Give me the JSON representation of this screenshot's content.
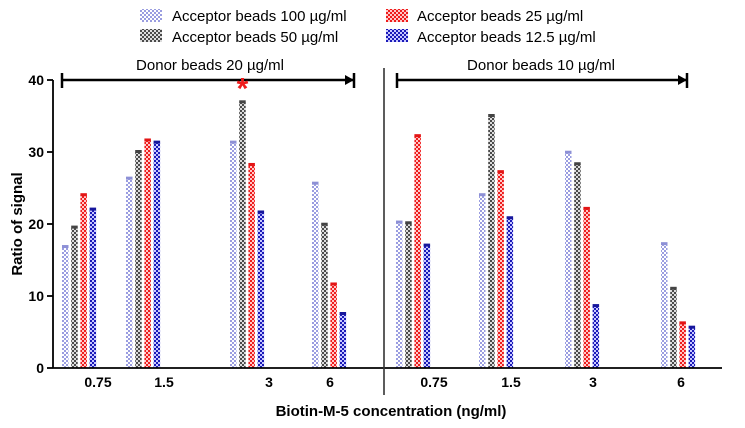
{
  "chart_data": {
    "type": "bar",
    "xlabel": "Biotin-M-5 concentration (ng/ml)",
    "ylabel": "Ratio of signal",
    "ylim": [
      0,
      40
    ],
    "yticks": [
      "0",
      "10",
      "20",
      "30",
      "40"
    ],
    "grid": false,
    "legend_position": "top",
    "legend": [
      {
        "label": "Acceptor beads 100  µg/ml",
        "color": "#9a9de0",
        "pattern": "light-check"
      },
      {
        "label": "Acceptor beads  50  µg/ml",
        "color": "#555555",
        "pattern": "dark-check"
      },
      {
        "label": "Acceptor beads    25  µg/ml",
        "color": "#ee1c1c",
        "pattern": "red-check"
      },
      {
        "label": "Acceptor beads 12.5 µg/ml",
        "color": "#1a1ab8",
        "pattern": "blue-check"
      }
    ],
    "groups": [
      {
        "label": "Donor beads 20  µg/ml",
        "categories": [
          "0.75",
          "1.5",
          "3",
          "6"
        ],
        "series": [
          {
            "name": "Acceptor beads 100  µg/ml",
            "values": [
              16.8,
              26.3,
              31.3,
              25.6
            ]
          },
          {
            "name": "Acceptor beads  50  µg/ml",
            "values": [
              19.5,
              30.0,
              36.9,
              19.9
            ]
          },
          {
            "name": "Acceptor beads    25  µg/ml",
            "values": [
              24.0,
              31.6,
              28.2,
              11.6
            ]
          },
          {
            "name": "Acceptor beads 12.5 µg/ml",
            "values": [
              22.0,
              31.3,
              21.6,
              7.5
            ]
          }
        ]
      },
      {
        "label": "Donor beads 10  µg/ml",
        "categories": [
          "0.75",
          "1.5",
          "3",
          "6"
        ],
        "series": [
          {
            "name": "Acceptor beads 100  µg/ml",
            "values": [
              20.2,
              24.0,
              29.9,
              17.2
            ]
          },
          {
            "name": "Acceptor beads  50  µg/ml",
            "values": [
              20.1,
              35.0,
              28.3,
              11.0
            ]
          },
          {
            "name": "Acceptor beads    25  µg/ml",
            "values": [
              32.2,
              27.2,
              22.1,
              6.2
            ]
          },
          {
            "name": "Acceptor beads 12.5 µg/ml",
            "values": [
              17.0,
              20.8,
              8.6,
              5.6
            ]
          }
        ]
      }
    ],
    "annotations": [
      {
        "text": "*",
        "color": "#ee1c1c",
        "group": 0,
        "category": 2,
        "series": 1
      }
    ]
  }
}
